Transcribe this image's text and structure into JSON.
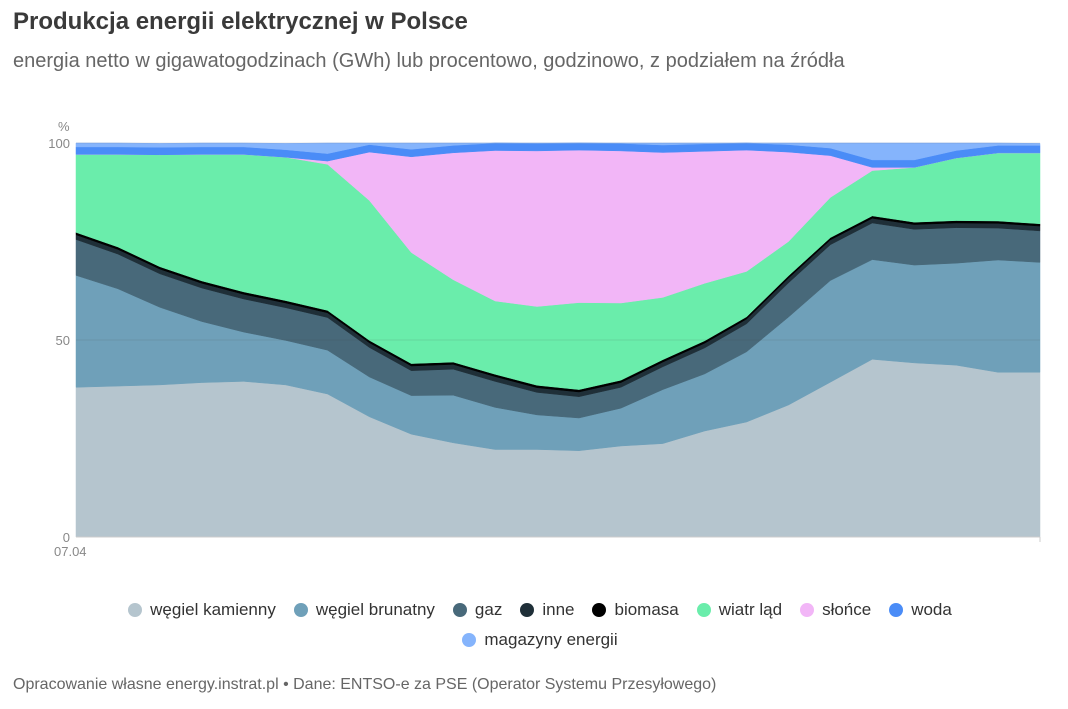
{
  "header": {
    "title": "Produkcja energii elektrycznej w Polsce",
    "subtitle": "energia netto w gigawatogodzinach (GWh) lub procentowo, godzinowo, z podziałem na źródła"
  },
  "footer": {
    "source": "Opracowanie własne energy.instrat.pl • Dane: ENTSO-e za PSE (Operator Systemu Przesyłowego)"
  },
  "chart_data": {
    "type": "area",
    "stacked": true,
    "normalized": true,
    "ylabel": "%",
    "ylim": [
      0,
      100
    ],
    "yticks": [
      0,
      50,
      100
    ],
    "grid": true,
    "xtick_labels": [
      "07.04"
    ],
    "x": [
      0,
      1,
      2,
      3,
      4,
      5,
      6,
      7,
      8,
      9,
      10,
      11,
      12,
      13,
      14,
      15,
      16,
      17,
      18,
      19,
      20,
      21,
      22,
      23
    ],
    "legend_position": "bottom",
    "series": [
      {
        "name": "węgiel kamienny",
        "color": "#b5c5ce",
        "values": [
          38.0,
          38.3,
          38.6,
          39.2,
          39.5,
          38.6,
          36.3,
          30.5,
          26.1,
          23.9,
          22.2,
          22.2,
          21.9,
          23.1,
          23.7,
          26.9,
          29.2,
          33.5,
          39.3,
          45.1,
          44.2,
          43.6,
          41.8,
          41.8
        ]
      },
      {
        "name": "węgiel brunatny",
        "color": "#6fa0b9",
        "values": [
          28.4,
          24.7,
          19.7,
          15.5,
          12.5,
          11.3,
          11.1,
          10.1,
          9.8,
          12.1,
          10.7,
          8.8,
          8.3,
          9.6,
          13.7,
          14.5,
          17.8,
          22.3,
          25.8,
          25.3,
          24.8,
          25.9,
          28.5,
          27.9
        ]
      },
      {
        "name": "gaz",
        "color": "#48697a",
        "values": [
          9.1,
          8.8,
          8.5,
          8.5,
          8.4,
          8.3,
          8.3,
          7.5,
          6.3,
          6.6,
          6.6,
          5.7,
          5.4,
          5.3,
          5.8,
          6.6,
          7.1,
          8.7,
          9.1,
          9.3,
          9.1,
          9.0,
          8.1,
          8.0
        ]
      },
      {
        "name": "inne",
        "color": "#1f2f38",
        "values": [
          1.2,
          1.2,
          1.2,
          1.2,
          1.2,
          1.2,
          1.2,
          1.2,
          1.2,
          1.2,
          1.2,
          1.2,
          1.2,
          1.2,
          1.2,
          1.2,
          1.2,
          1.2,
          1.2,
          1.2,
          1.2,
          1.2,
          1.2,
          1.2
        ]
      },
      {
        "name": "biomasa",
        "color": "#000000",
        "values": [
          0.6,
          0.6,
          0.6,
          0.6,
          0.6,
          0.6,
          0.6,
          0.6,
          0.6,
          0.6,
          0.6,
          0.6,
          0.6,
          0.6,
          0.6,
          0.6,
          0.6,
          0.6,
          0.6,
          0.6,
          0.6,
          0.6,
          0.6,
          0.6
        ]
      },
      {
        "name": "wiatr ląd",
        "color": "#6aedab",
        "values": [
          19.8,
          23.5,
          28.4,
          32.1,
          34.9,
          36.4,
          37.1,
          35.5,
          28.2,
          20.9,
          18.6,
          20.0,
          22.1,
          19.6,
          15.8,
          14.6,
          11.5,
          8.7,
          10.2,
          11.5,
          13.9,
          15.9,
          17.3,
          18.0
        ]
      },
      {
        "name": "słońce",
        "color": "#f2b6f7",
        "values": [
          0.0,
          0.0,
          0.0,
          0.0,
          0.0,
          0.0,
          0.8,
          12.3,
          24.3,
          32.2,
          38.2,
          39.5,
          38.7,
          38.6,
          36.8,
          33.5,
          30.8,
          22.7,
          10.6,
          0.8,
          0.0,
          0.0,
          0.0,
          0.0
        ]
      },
      {
        "name": "woda",
        "color": "#4a8cf7",
        "values": [
          1.9,
          1.9,
          1.9,
          1.9,
          1.9,
          1.9,
          1.9,
          1.9,
          1.9,
          1.9,
          1.9,
          1.9,
          1.9,
          1.9,
          1.9,
          1.9,
          1.9,
          1.9,
          1.9,
          1.9,
          1.9,
          1.9,
          1.9,
          1.9
        ]
      },
      {
        "name": "magazyny energii",
        "color": "#85b4fc",
        "values": [
          1.0,
          1.0,
          1.0,
          1.0,
          1.0,
          1.6,
          2.7,
          0.4,
          1.6,
          0.8,
          0.0,
          0.1,
          0.0,
          0.1,
          0.5,
          0.2,
          0.0,
          0.4,
          1.3,
          4.3,
          4.3,
          2.0,
          0.6,
          0.5
        ]
      }
    ]
  }
}
